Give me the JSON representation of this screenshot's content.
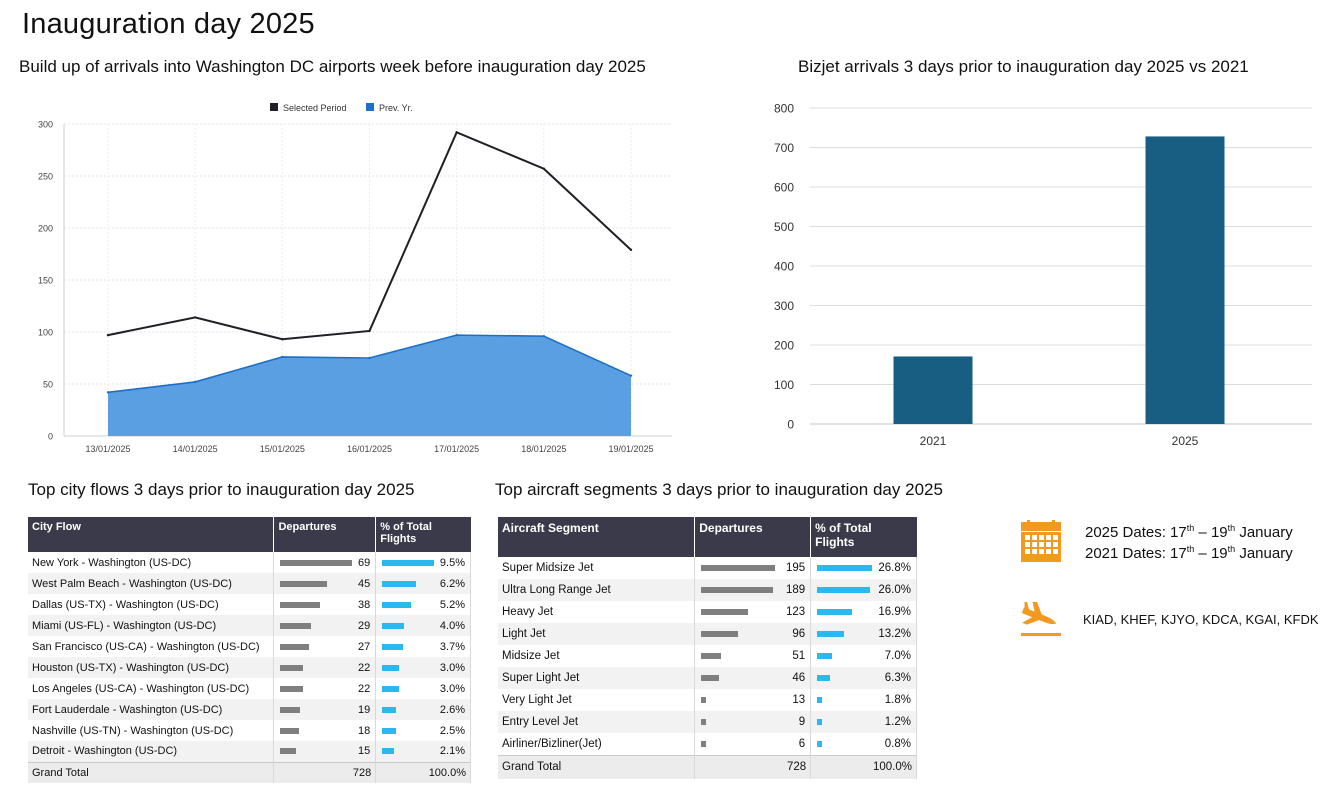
{
  "page_title": "Inauguration day 2025",
  "colors": {
    "selected_line": "#1f1f26",
    "prev_area": "#5b9fe3",
    "prev_line": "#1c6fc7",
    "bizjet_bar": "#175e82",
    "dep_bar": "#7f7f7f",
    "pct_bar": "#29b8ef",
    "table_header": "#3b3a4a",
    "info_icon": "#f29a1f"
  },
  "chart_data": [
    {
      "type": "line",
      "title": "Build up of arrivals into Washington DC airports week before inauguration day 2025",
      "categories": [
        "13/01/2025",
        "14/01/2025",
        "15/01/2025",
        "16/01/2025",
        "17/01/2025",
        "18/01/2025",
        "19/01/2025"
      ],
      "series": [
        {
          "name": "Selected Period",
          "style": "line",
          "values": [
            97,
            114,
            93,
            101,
            292,
            257,
            179
          ]
        },
        {
          "name": "Prev. Yr.",
          "style": "area",
          "values": [
            42,
            52,
            76,
            75,
            97,
            96,
            58
          ]
        }
      ],
      "ylim": [
        0,
        300
      ],
      "yticks": [
        0,
        50,
        100,
        150,
        200,
        250,
        300
      ],
      "grid": true,
      "legend": "top-center"
    },
    {
      "type": "bar",
      "title": "Bizjet arrivals 3 days prior to inauguration day 2025 vs 2021",
      "categories": [
        "2021",
        "2025"
      ],
      "values": [
        171,
        728
      ],
      "ylim": [
        0,
        800
      ],
      "yticks": [
        0,
        100,
        200,
        300,
        400,
        500,
        600,
        700,
        800
      ],
      "grid": true
    },
    {
      "type": "table",
      "title": "Top city flows 3 days prior to inauguration day 2025",
      "columns": [
        "City Flow",
        "Departures",
        "% of Total Flights"
      ],
      "rows": [
        {
          "name": "New York - Washington (US-DC)",
          "departures": "69",
          "pct": "9.5%",
          "d": 69,
          "p": 9.5
        },
        {
          "name": "West Palm Beach - Washington (US-DC)",
          "departures": "45",
          "pct": "6.2%",
          "d": 45,
          "p": 6.2
        },
        {
          "name": "Dallas (US-TX) - Washington (US-DC)",
          "departures": "38",
          "pct": "5.2%",
          "d": 38,
          "p": 5.2
        },
        {
          "name": "Miami (US-FL) - Washington (US-DC)",
          "departures": "29",
          "pct": "4.0%",
          "d": 29,
          "p": 4.0
        },
        {
          "name": "San Francisco (US-CA) - Washington (US-DC)",
          "departures": "27",
          "pct": "3.7%",
          "d": 27,
          "p": 3.7
        },
        {
          "name": "Houston (US-TX) - Washington (US-DC)",
          "departures": "22",
          "pct": "3.0%",
          "d": 22,
          "p": 3.0
        },
        {
          "name": "Los Angeles (US-CA) - Washington (US-DC)",
          "departures": "22",
          "pct": "3.0%",
          "d": 22,
          "p": 3.0
        },
        {
          "name": "Fort Lauderdale - Washington (US-DC)",
          "departures": "19",
          "pct": "2.6%",
          "d": 19,
          "p": 2.6
        },
        {
          "name": "Nashville (US-TN) - Washington (US-DC)",
          "departures": "18",
          "pct": "2.5%",
          "d": 18,
          "p": 2.5
        },
        {
          "name": "Detroit - Washington (US-DC)",
          "departures": "15",
          "pct": "2.1%",
          "d": 15,
          "p": 2.1
        }
      ],
      "total": {
        "name": "Grand Total",
        "departures": "728",
        "pct": "100.0%"
      }
    },
    {
      "type": "table",
      "title": "Top aircraft segments 3 days prior to inauguration day 2025",
      "columns": [
        "Aircraft Segment",
        "Departures",
        "% of Total Flights"
      ],
      "rows": [
        {
          "name": "Super Midsize Jet",
          "departures": "195",
          "pct": "26.8%",
          "d": 195,
          "p": 26.8
        },
        {
          "name": "Ultra Long Range Jet",
          "departures": "189",
          "pct": "26.0%",
          "d": 189,
          "p": 26.0
        },
        {
          "name": "Heavy Jet",
          "departures": "123",
          "pct": "16.9%",
          "d": 123,
          "p": 16.9
        },
        {
          "name": "Light Jet",
          "departures": "96",
          "pct": "13.2%",
          "d": 96,
          "p": 13.2
        },
        {
          "name": "Midsize Jet",
          "departures": "51",
          "pct": "7.0%",
          "d": 51,
          "p": 7.0
        },
        {
          "name": "Super Light Jet",
          "departures": "46",
          "pct": "6.3%",
          "d": 46,
          "p": 6.3
        },
        {
          "name": "Very Light Jet",
          "departures": "13",
          "pct": "1.8%",
          "d": 13,
          "p": 1.8
        },
        {
          "name": "Entry Level Jet",
          "departures": "9",
          "pct": "1.2%",
          "d": 9,
          "p": 1.2
        },
        {
          "name": "Airliner/Bizliner(Jet)",
          "departures": "6",
          "pct": "0.8%",
          "d": 6,
          "p": 0.8
        }
      ],
      "total": {
        "name": "Grand Total",
        "departures": "728",
        "pct": "100.0%"
      }
    }
  ],
  "info": {
    "dates_2025": {
      "prefix": "2025 Dates: 17",
      "sup1": "th",
      "mid": " – 19",
      "sup2": "th",
      "suffix": " January"
    },
    "dates_2021": {
      "prefix": "2021 Dates: 17",
      "sup1": "th",
      "mid": " – 19",
      "sup2": "th",
      "suffix": " January"
    },
    "airports": "KIAD, KHEF, KJYO, KDCA, KGAI, KFDK",
    "calendar_icon": "calendar-icon",
    "plane_icon": "plane-landing-icon"
  }
}
